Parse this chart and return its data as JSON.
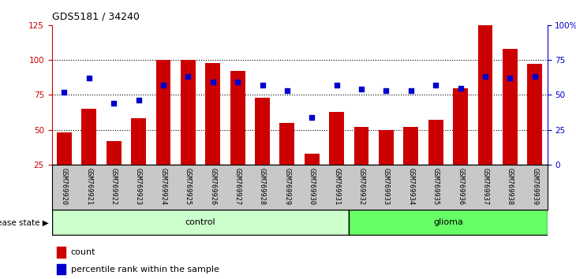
{
  "title": "GDS5181 / 34240",
  "samples": [
    "GSM769920",
    "GSM769921",
    "GSM769922",
    "GSM769923",
    "GSM769924",
    "GSM769925",
    "GSM769926",
    "GSM769927",
    "GSM769928",
    "GSM769929",
    "GSM769930",
    "GSM769931",
    "GSM769932",
    "GSM769933",
    "GSM769934",
    "GSM769935",
    "GSM769936",
    "GSM769937",
    "GSM769938",
    "GSM769939"
  ],
  "counts": [
    48,
    65,
    42,
    58,
    100,
    100,
    98,
    92,
    73,
    55,
    33,
    63,
    52,
    50,
    52,
    57,
    80,
    125,
    108,
    97
  ],
  "percentiles": [
    52,
    62,
    44,
    46,
    57,
    63,
    59,
    59,
    57,
    53,
    34,
    57,
    54,
    53,
    53,
    57,
    55,
    63,
    62,
    63
  ],
  "control_count": 12,
  "glioma_count": 8,
  "ylim_left": [
    25,
    125
  ],
  "ylim_right": [
    0,
    100
  ],
  "yticks_left": [
    25,
    50,
    75,
    100,
    125
  ],
  "yticks_right": [
    0,
    25,
    50,
    75,
    100
  ],
  "ytick_labels_right": [
    "0",
    "25",
    "50",
    "75",
    "100%"
  ],
  "bar_color": "#cc0000",
  "dot_color": "#0000cc",
  "bg_color": "#ffffff",
  "tick_area_color": "#c8c8c8",
  "control_color": "#ccffcc",
  "glioma_color": "#66ff66",
  "legend_count_label": "count",
  "legend_pct_label": "percentile rank within the sample",
  "disease_label": "disease state",
  "control_label": "control",
  "glioma_label": "glioma"
}
